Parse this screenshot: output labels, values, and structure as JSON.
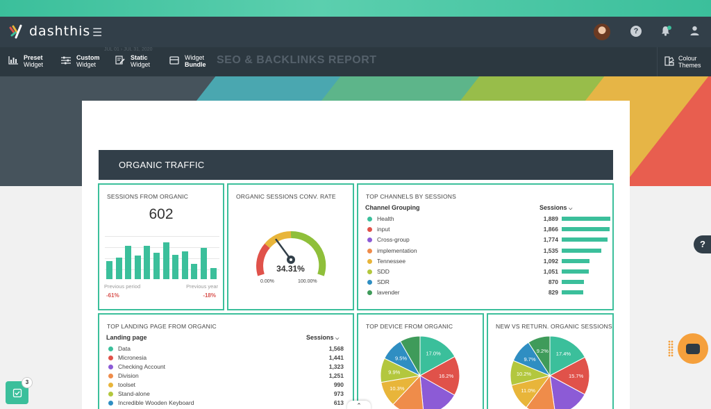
{
  "app": {
    "logo_text": "dashthis"
  },
  "toolbar": {
    "preset": {
      "line1": "Preset",
      "line2": "Widget"
    },
    "custom": {
      "line1": "Custom",
      "line2": "Widget"
    },
    "static": {
      "line1": "Static",
      "line2": "Widget"
    },
    "bundle": {
      "line1": "Widget",
      "line2": "Bundle"
    },
    "colour": {
      "line1": "Colour",
      "line2": "Themes"
    }
  },
  "report": {
    "subtitle": "JUL 01 › JUL 31, 2020",
    "title": "SEO & BACKLINKS REPORT",
    "section_title": "ORGANIC TRAFFIC"
  },
  "sessions_widget": {
    "title": "SESSIONS FROM ORGANIC",
    "value": "602",
    "bar_levels": [
      0.42,
      0.5,
      0.78,
      0.55,
      0.77,
      0.61,
      0.85,
      0.56,
      0.64,
      0.36,
      0.73,
      0.26
    ],
    "prev_period_label": "Previous period",
    "prev_period_value": "-61%",
    "prev_year_label": "Previous year",
    "prev_year_value": "-18%"
  },
  "conv_widget": {
    "title": "ORGANIC SESSIONS CONV. RATE",
    "value": "34.31%",
    "min_label": "0.00%",
    "max_label": "100.00%",
    "needle_fraction": 0.3431
  },
  "channels_widget": {
    "title": "TOP CHANNELS BY SESSIONS",
    "col1": "Channel Grouping",
    "col2": "Sessions",
    "rows": [
      {
        "label": "Health",
        "value": "1,889",
        "num": 1889,
        "color": "#3bbf9b"
      },
      {
        "label": "input",
        "value": "1,866",
        "num": 1866,
        "color": "#e0524a"
      },
      {
        "label": "Cross-group",
        "value": "1,774",
        "num": 1774,
        "color": "#8c5bd6"
      },
      {
        "label": "implementation",
        "value": "1,535",
        "num": 1535,
        "color": "#ef8c4a"
      },
      {
        "label": "Tennessee",
        "value": "1,092",
        "num": 1092,
        "color": "#e8b53a"
      },
      {
        "label": "SDD",
        "value": "1,051",
        "num": 1051,
        "color": "#b3c73e"
      },
      {
        "label": "SDR",
        "value": "870",
        "num": 870,
        "color": "#2f8ec2"
      },
      {
        "label": "lavender",
        "value": "829",
        "num": 829,
        "color": "#3f9b5a"
      }
    ]
  },
  "landing_widget": {
    "title": "TOP LANDING PAGE FROM ORGANIC",
    "col1": "Landing page",
    "col2": "Sessions",
    "rows": [
      {
        "label": "Data",
        "value": "1,568",
        "color": "#3bbf9b"
      },
      {
        "label": "Micronesia",
        "value": "1,441",
        "color": "#e0524a"
      },
      {
        "label": "Checking Account",
        "value": "1,323",
        "color": "#8c5bd6"
      },
      {
        "label": "Division",
        "value": "1,251",
        "color": "#ef8c4a"
      },
      {
        "label": "toolset",
        "value": "990",
        "color": "#e8b53a"
      },
      {
        "label": "Stand-alone",
        "value": "973",
        "color": "#b3c73e"
      },
      {
        "label": "Incredible Wooden Keyboard",
        "value": "613",
        "color": "#2f8ec2"
      }
    ]
  },
  "device_widget": {
    "title": "TOP DEVICE FROM ORGANIC",
    "slices": [
      {
        "pct": 17.0,
        "label": "17.0%",
        "color": "#3bbf9b"
      },
      {
        "pct": 16.2,
        "label": "16.2%",
        "color": "#e0524a"
      },
      {
        "pct": 15.3,
        "label": "",
        "color": "#8c5bd6"
      },
      {
        "pct": 13.5,
        "label": "",
        "color": "#ef8c4a"
      },
      {
        "pct": 10.3,
        "label": "10.3%",
        "color": "#e8b53a"
      },
      {
        "pct": 9.9,
        "label": "9.9%",
        "color": "#b3c73e"
      },
      {
        "pct": 9.5,
        "label": "9.5%",
        "color": "#2f8ec2"
      },
      {
        "pct": 8.3,
        "label": "",
        "color": "#3f9b5a"
      }
    ]
  },
  "return_widget": {
    "title": "NEW VS RETURN. ORGANIC SESSIONS",
    "slices": [
      {
        "pct": 17.4,
        "label": "17.4%",
        "color": "#3bbf9b"
      },
      {
        "pct": 15.7,
        "label": "15.7%",
        "color": "#e0524a"
      },
      {
        "pct": 15.0,
        "label": "",
        "color": "#8c5bd6"
      },
      {
        "pct": 12.5,
        "label": "",
        "color": "#ef8c4a"
      },
      {
        "pct": 11.0,
        "label": "11.0%",
        "color": "#e8b53a"
      },
      {
        "pct": 10.2,
        "label": "10.2%",
        "color": "#b3c73e"
      },
      {
        "pct": 9.7,
        "label": "9.7%",
        "color": "#2f8ec2"
      },
      {
        "pct": 9.2,
        "label": "9.2%",
        "color": "#3f9b5a"
      }
    ]
  },
  "fabs": {
    "help": "?",
    "task_badge": "3"
  }
}
